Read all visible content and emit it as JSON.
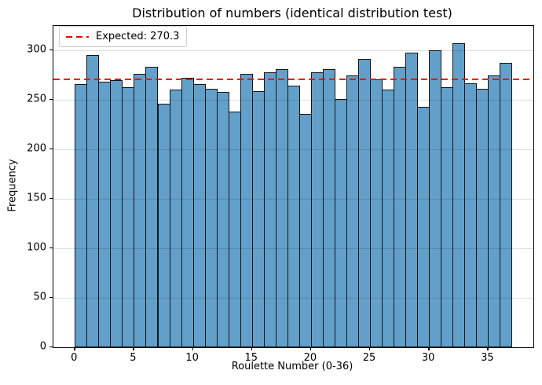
{
  "chart_data": {
    "type": "bar",
    "subtype": "histogram",
    "title": "Distribution of numbers (identical distribution test)",
    "xlabel": "Roulette Number (0-36)",
    "ylabel": "Frequency",
    "categories": [
      0,
      1,
      2,
      3,
      4,
      5,
      6,
      7,
      8,
      9,
      10,
      11,
      12,
      13,
      14,
      15,
      16,
      17,
      18,
      19,
      20,
      21,
      22,
      23,
      24,
      25,
      26,
      27,
      28,
      29,
      30,
      31,
      32,
      33,
      34,
      35,
      36
    ],
    "values": [
      266,
      295,
      268,
      270,
      263,
      276,
      283,
      246,
      260,
      272,
      266,
      261,
      258,
      238,
      276,
      259,
      278,
      281,
      264,
      236,
      278,
      281,
      251,
      275,
      291,
      271,
      260,
      283,
      298,
      243,
      300,
      263,
      307,
      267,
      261,
      275,
      287
    ],
    "x_ticks": [
      0,
      5,
      10,
      15,
      20,
      25,
      30,
      35
    ],
    "y_ticks": [
      0,
      50,
      100,
      150,
      200,
      250,
      300
    ],
    "xlim": [
      -1.85,
      38.85
    ],
    "ylim": [
      0,
      324.5
    ],
    "grid": "horizontal-only, faint gray, drawn over bars",
    "legend": {
      "position": "upper-left",
      "entries": [
        {
          "label": "Expected: 270.3",
          "line_style": "dashed",
          "color": "#f40000"
        }
      ]
    },
    "expected_line": {
      "value": 270.3,
      "label": "Expected: 270.3",
      "color": "#f40000",
      "style": "dashed"
    },
    "bar_color": "#62a0ca",
    "bar_edge_color": "#141414"
  }
}
